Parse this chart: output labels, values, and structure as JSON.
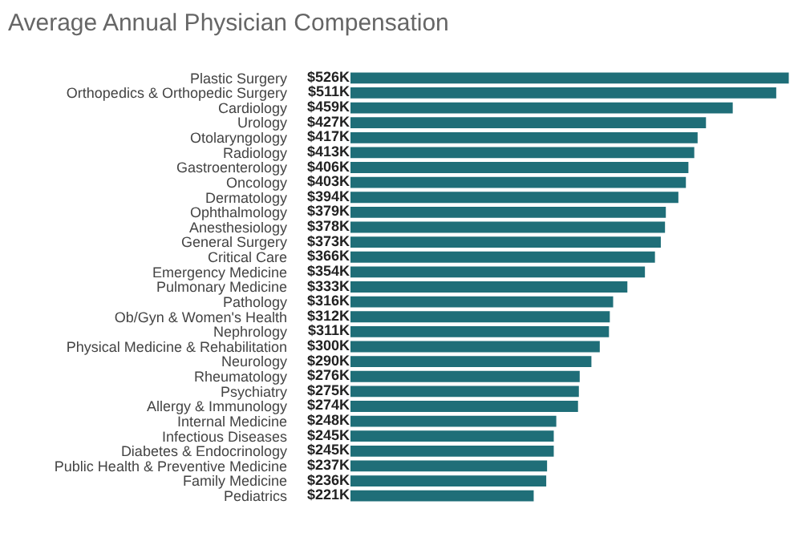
{
  "chart_data": {
    "type": "bar",
    "orientation": "horizontal",
    "title": "Average Annual Physician Compensation",
    "categories": [
      "Plastic Surgery",
      "Orthopedics & Orthopedic Surgery",
      "Cardiology",
      "Urology",
      "Otolaryngology",
      "Radiology",
      "Gastroenterology",
      "Oncology",
      "Dermatology",
      "Ophthalmology",
      "Anesthesiology",
      "General Surgery",
      "Critical Care",
      "Emergency Medicine",
      "Pulmonary Medicine",
      "Pathology",
      "Ob/Gyn & Women's Health",
      "Nephrology",
      "Physical Medicine & Rehabilitation",
      "Neurology",
      "Rheumatology",
      "Psychiatry",
      "Allergy & Immunology",
      "Internal Medicine",
      "Infectious Diseases",
      "Diabetes & Endocrinology",
      "Public Health & Preventive Medicine",
      "Family Medicine",
      "Pediatrics"
    ],
    "values": [
      526,
      511,
      459,
      427,
      417,
      413,
      406,
      403,
      394,
      379,
      378,
      373,
      366,
      354,
      333,
      316,
      312,
      311,
      300,
      290,
      276,
      275,
      274,
      248,
      245,
      245,
      237,
      236,
      221
    ],
    "value_labels": [
      "$526K",
      "$511K",
      "$459K",
      "$427K",
      "$417K",
      "$413K",
      "$406K",
      "$403K",
      "$394K",
      "$379K",
      "$378K",
      "$373K",
      "$366K",
      "$354K",
      "$333K",
      "$316K",
      "$312K",
      "$311K",
      "$300K",
      "$290K",
      "$276K",
      "$275K",
      "$274K",
      "$248K",
      "$245K",
      "$245K",
      "$237K",
      "$236K",
      "$221K"
    ],
    "color": "#1f6e78"
  }
}
